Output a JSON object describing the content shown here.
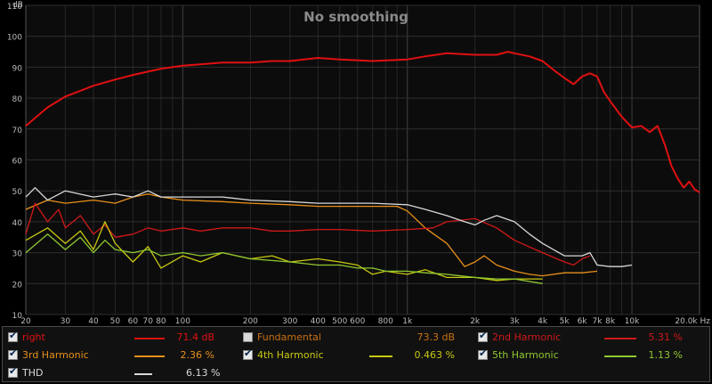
{
  "chart_data": {
    "type": "line",
    "title": "No smoothing",
    "yunit": "dB",
    "xunit": "Hz",
    "xscale": "log",
    "xlim": [
      20,
      20000
    ],
    "ylim": [
      10,
      110
    ],
    "grid": true,
    "y_ticks": [
      10,
      20,
      30,
      40,
      50,
      60,
      70,
      80,
      90,
      100,
      110
    ],
    "x_ticks": [
      {
        "v": 20,
        "t": "20"
      },
      {
        "v": 30,
        "t": "30"
      },
      {
        "v": 40,
        "t": "40"
      },
      {
        "v": 50,
        "t": "50"
      },
      {
        "v": 60,
        "t": "60"
      },
      {
        "v": 70,
        "t": "70"
      },
      {
        "v": 80,
        "t": "80"
      },
      {
        "v": 100,
        "t": "100"
      },
      {
        "v": 200,
        "t": "200"
      },
      {
        "v": 300,
        "t": "300"
      },
      {
        "v": 400,
        "t": "400"
      },
      {
        "v": 500,
        "t": "500"
      },
      {
        "v": 600,
        "t": "600"
      },
      {
        "v": 800,
        "t": "800"
      },
      {
        "v": 1000,
        "t": "1k"
      },
      {
        "v": 2000,
        "t": "2k"
      },
      {
        "v": 3000,
        "t": "3k"
      },
      {
        "v": 4000,
        "t": "4k"
      },
      {
        "v": 5000,
        "t": "5k"
      },
      {
        "v": 6000,
        "t": "6k"
      },
      {
        "v": 7000,
        "t": "7k"
      },
      {
        "v": 8000,
        "t": "8k"
      },
      {
        "v": 10000,
        "t": "10k"
      },
      {
        "v": 20000,
        "t": "20.0k Hz"
      }
    ],
    "series": [
      {
        "name": "right",
        "color": "#e01010",
        "x": [
          20,
          25,
          30,
          40,
          50,
          60,
          80,
          100,
          150,
          200,
          250,
          300,
          400,
          500,
          700,
          1000,
          1200,
          1500,
          2000,
          2500,
          2800,
          3000,
          3500,
          4000,
          4500,
          5000,
          5500,
          6000,
          6500,
          7000,
          7500,
          8000,
          9000,
          10000,
          11000,
          12000,
          13000,
          14000,
          15000,
          16000,
          17000,
          18000,
          19000,
          20000
        ],
        "y": [
          71,
          77,
          80.5,
          84,
          86,
          87.5,
          89.5,
          90.5,
          91.5,
          91.5,
          92,
          92,
          93,
          92.5,
          92,
          92.5,
          93.5,
          94.5,
          94,
          94,
          95,
          94.5,
          93.5,
          92,
          89,
          86.5,
          84.5,
          87,
          88,
          87,
          82,
          79,
          74,
          70.5,
          71,
          69,
          71,
          65,
          58,
          54,
          51,
          53,
          50.5,
          49.5
        ]
      },
      {
        "name": "3rd Harmonic",
        "color": "#e8901a",
        "x": [
          20,
          25,
          30,
          40,
          50,
          60,
          70,
          80,
          100,
          150,
          200,
          300,
          400,
          500,
          700,
          900,
          1000,
          1200,
          1500,
          1800,
          2000,
          2200,
          2500,
          3000,
          3500,
          4000,
          5000,
          6000,
          7000
        ],
        "y": [
          44,
          47,
          46,
          47,
          46,
          48,
          49,
          48,
          47,
          46.5,
          46,
          45.5,
          45,
          45,
          45,
          45,
          43.5,
          38,
          33,
          25.5,
          27,
          29,
          26,
          24,
          23,
          22.5,
          23.5,
          23.5,
          24
        ]
      },
      {
        "name": "2nd Harmonic",
        "color": "#d01818",
        "x": [
          20,
          22,
          25,
          28,
          30,
          35,
          40,
          45,
          50,
          60,
          70,
          80,
          100,
          120,
          150,
          200,
          250,
          300,
          400,
          500,
          700,
          1000,
          1300,
          1500,
          2000,
          2500,
          3000,
          4000,
          5000,
          5500,
          6000,
          6500
        ],
        "y": [
          36,
          46,
          40,
          44,
          38,
          42,
          36,
          39,
          35,
          36,
          38,
          37,
          38,
          37,
          38,
          38,
          37,
          37,
          37.5,
          37.5,
          37,
          37.5,
          38,
          40,
          41,
          38,
          34,
          30,
          27,
          26,
          28,
          29
        ]
      },
      {
        "name": "4th Harmonic",
        "color": "#c8c810",
        "x": [
          20,
          25,
          30,
          35,
          40,
          45,
          50,
          60,
          70,
          80,
          100,
          120,
          150,
          200,
          250,
          300,
          400,
          500,
          600,
          700,
          800,
          1000,
          1200,
          1500,
          2000,
          2500,
          3000,
          4000
        ],
        "y": [
          34,
          38,
          33,
          37,
          31,
          40,
          33,
          27,
          32,
          25,
          29,
          27,
          30,
          28,
          29,
          27,
          28,
          27,
          26,
          23,
          24,
          23,
          24.5,
          22,
          22,
          21,
          21.5,
          21.5
        ]
      },
      {
        "name": "5th Harmonic",
        "color": "#8fc830",
        "x": [
          20,
          25,
          30,
          35,
          40,
          45,
          50,
          60,
          70,
          80,
          100,
          120,
          150,
          200,
          300,
          400,
          500,
          600,
          700,
          800,
          1000,
          1200,
          1500,
          2000,
          2500,
          3000,
          4000
        ],
        "y": [
          30,
          36,
          31,
          35,
          30,
          34,
          31,
          30,
          31,
          29,
          30,
          29,
          30,
          28,
          27,
          26,
          26,
          25,
          25,
          24,
          24,
          23.5,
          23,
          22,
          21.5,
          21.5,
          20
        ]
      },
      {
        "name": "THD",
        "color": "#d8d8d8",
        "x": [
          20,
          22,
          25,
          30,
          40,
          50,
          60,
          70,
          80,
          100,
          150,
          200,
          300,
          400,
          500,
          700,
          1000,
          1200,
          1500,
          1800,
          2000,
          2200,
          2500,
          3000,
          3500,
          4000,
          5000,
          6000,
          6500,
          7000,
          8000,
          9000,
          10000
        ],
        "y": [
          48,
          51,
          47,
          50,
          48,
          49,
          48,
          50,
          48,
          48,
          48,
          47,
          46.5,
          46,
          46,
          46,
          45.5,
          44,
          42,
          40,
          39,
          40.5,
          42,
          40,
          36,
          33,
          29,
          29,
          30,
          26,
          25.5,
          25.5,
          26
        ]
      }
    ]
  },
  "legend": {
    "items": [
      {
        "name": "right",
        "checked": true,
        "color": "#e01010",
        "value": "71.4 dB"
      },
      {
        "name": "Fundamental",
        "checked": false,
        "color": "#c87010",
        "value": "73.3 dB"
      },
      {
        "name": "2nd Harmonic",
        "checked": true,
        "color": "#d01818",
        "value": "5.31 %"
      },
      {
        "name": "3rd Harmonic",
        "checked": true,
        "color": "#e8901a",
        "value": "2.36 %"
      },
      {
        "name": "4th Harmonic",
        "checked": true,
        "color": "#c8c810",
        "value": "0.463 %"
      },
      {
        "name": "5th Harmonic",
        "checked": true,
        "color": "#8fc830",
        "value": "1.13 %"
      },
      {
        "name": "THD",
        "checked": true,
        "color": "#d8d8d8",
        "value": "6.13 %"
      }
    ]
  }
}
